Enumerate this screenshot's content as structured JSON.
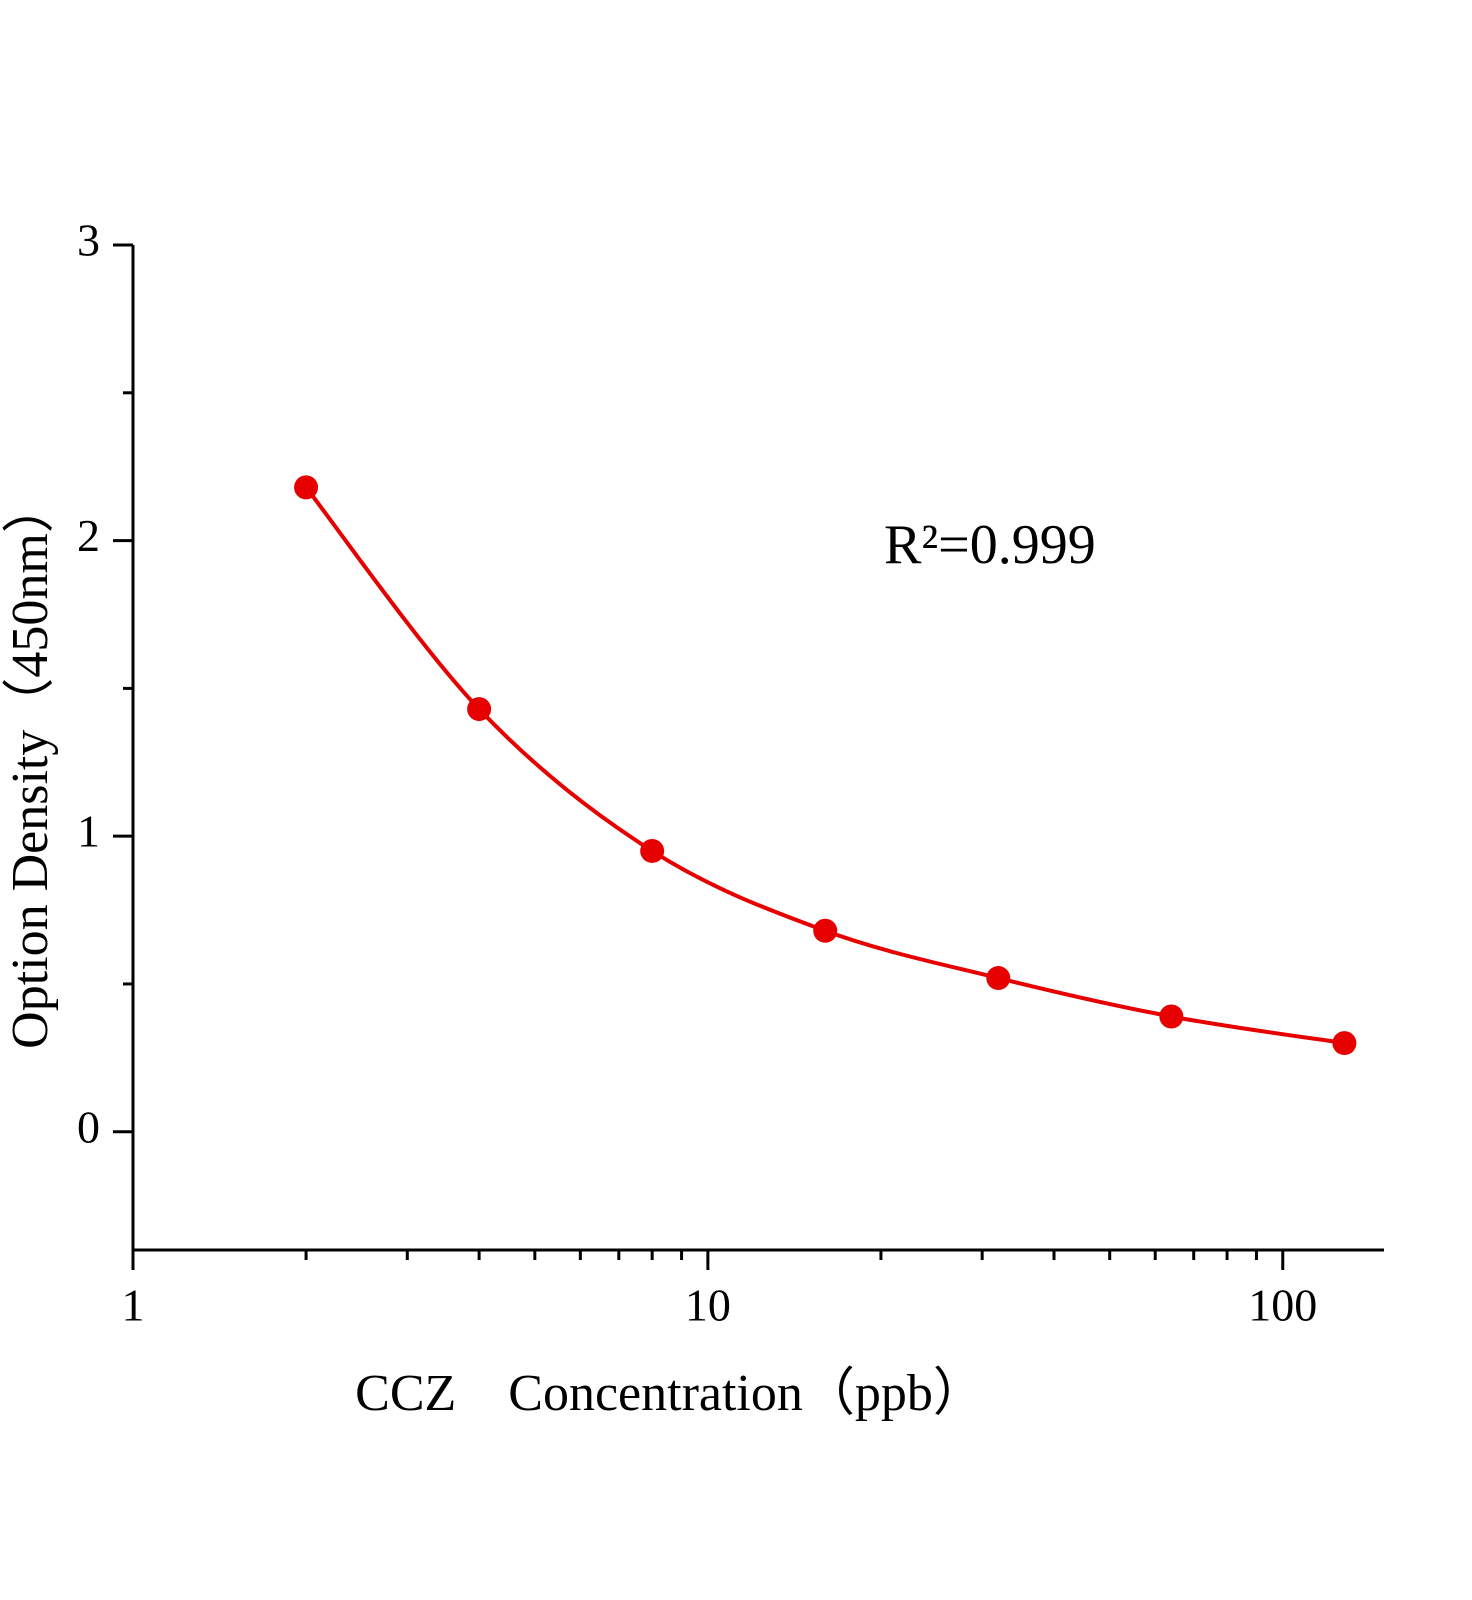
{
  "chart_data": {
    "type": "scatter",
    "x_label": "CCZ　Concentration（ppb）",
    "y_label": "Option Density（450nm）",
    "annotation": "R²=0.999",
    "x": [
      2,
      4,
      8,
      16,
      32,
      64,
      128
    ],
    "values": [
      2.18,
      1.43,
      0.95,
      0.68,
      0.52,
      0.39,
      0.3
    ],
    "color": "#e60000",
    "line": "smooth",
    "xscale": "log",
    "xlim": [
      1,
      150
    ],
    "xticks": [
      1,
      10,
      100
    ],
    "xminor_ticks": [
      2,
      3,
      4,
      5,
      6,
      7,
      8,
      9,
      20,
      30,
      40,
      50,
      60,
      70,
      80,
      90
    ],
    "ylim": [
      -0.4,
      3
    ],
    "yticks": [
      0,
      1,
      2,
      3
    ],
    "yminor_ticks": [
      0.5,
      1.5,
      2.5
    ]
  }
}
